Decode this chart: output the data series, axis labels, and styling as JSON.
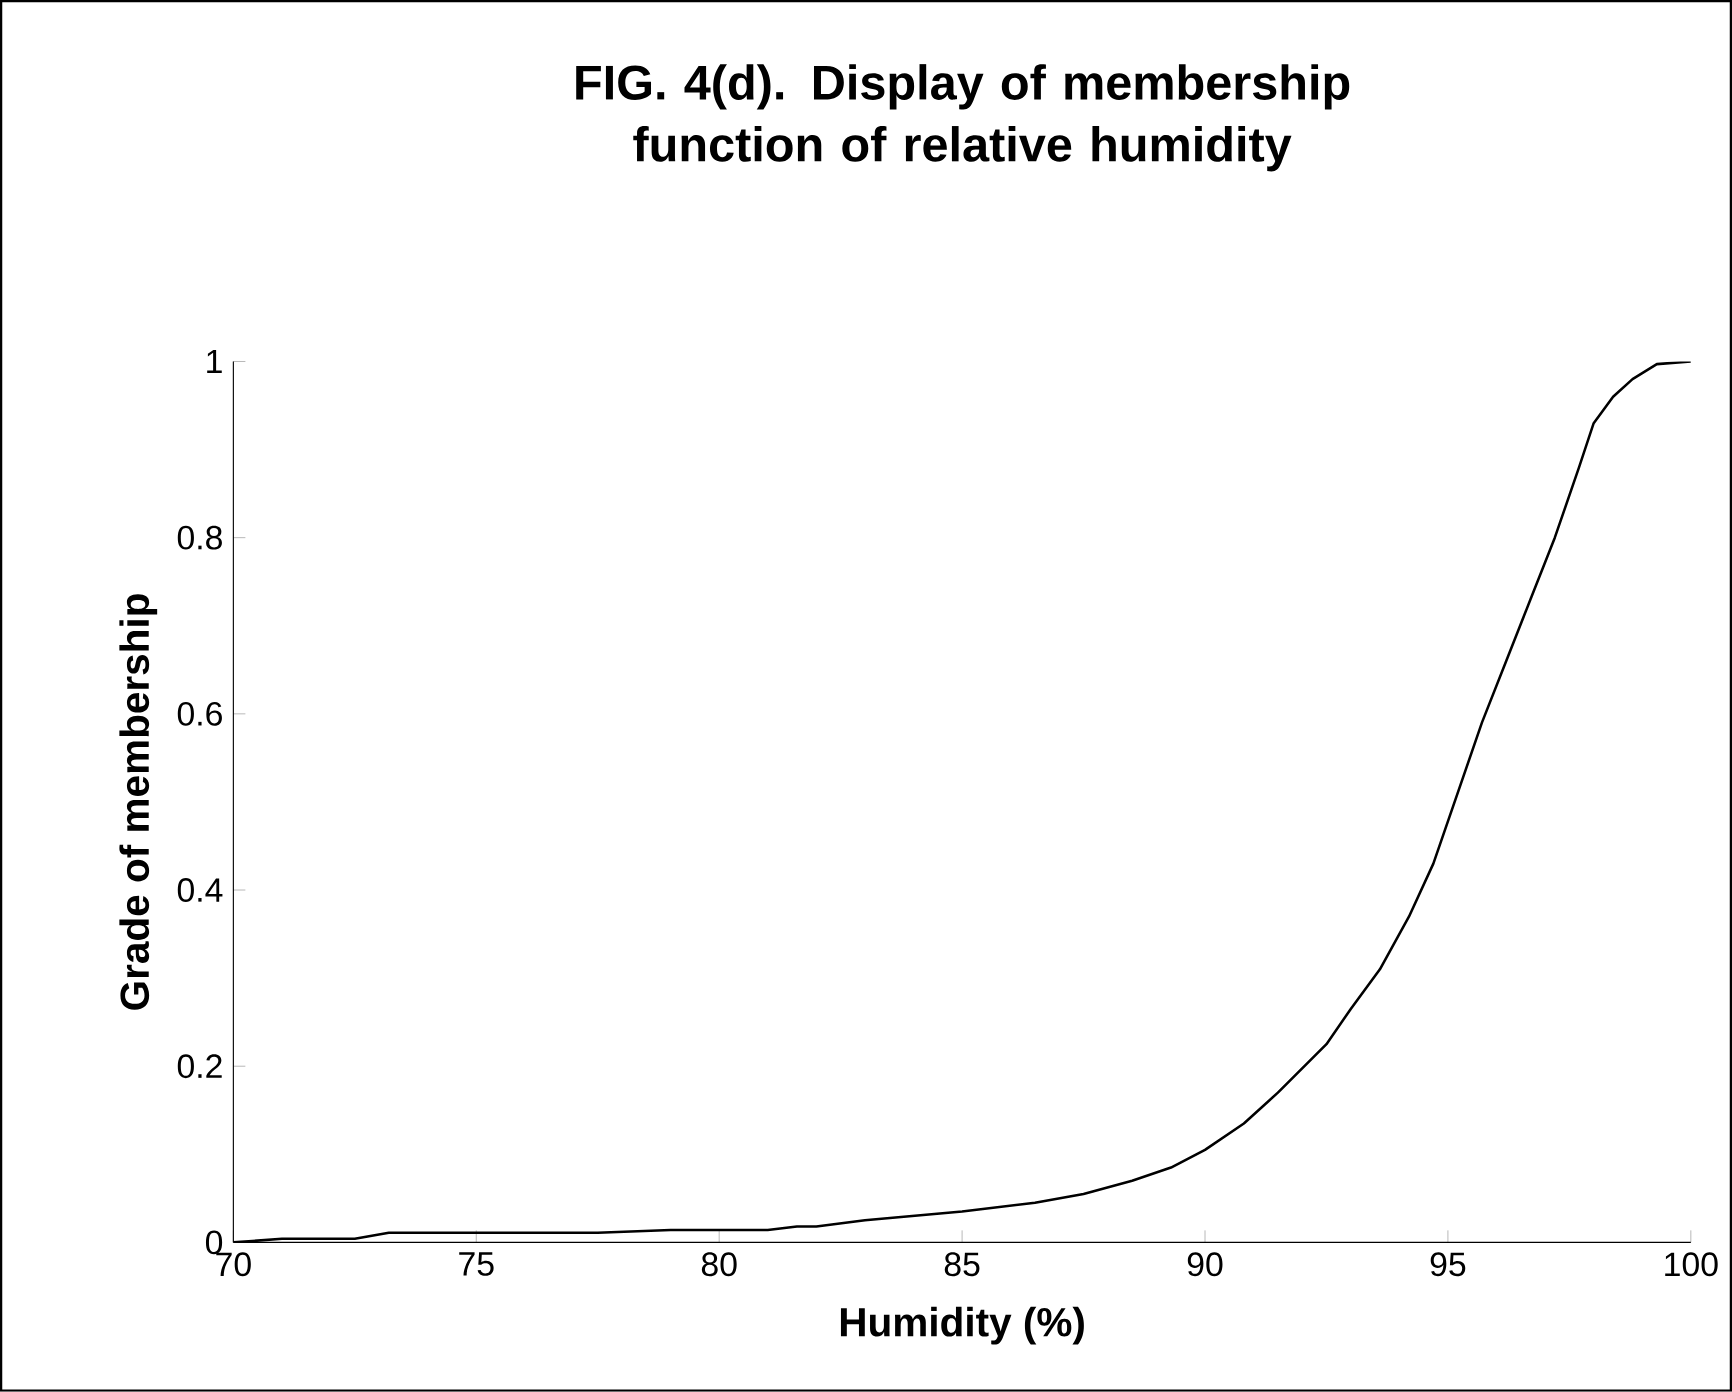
{
  "chart_data": {
    "type": "line",
    "title": "FIG. 4(d). Display of membership function of relative humidity",
    "xlabel": "Humidity (%)",
    "ylabel": "Grade of membership",
    "xlim": [
      70,
      100
    ],
    "ylim": [
      0,
      1
    ],
    "xticks": [
      70,
      75,
      80,
      85,
      90,
      95,
      100
    ],
    "yticks": [
      0,
      0.2,
      0.4,
      0.6,
      0.8,
      1
    ],
    "grid": false,
    "marker": "none",
    "line_style": "solid",
    "series": [
      {
        "color": "#000000",
        "x": [
          70,
          71,
          72.5,
          73.2,
          77.5,
          79,
          81,
          81.6,
          82,
          83,
          85,
          86.5,
          87.5,
          88.5,
          89.3,
          90,
          90.8,
          91.5,
          92.5,
          93,
          93.6,
          94.2,
          94.7,
          95.2,
          95.7,
          96.2,
          96.7,
          97.2,
          97.7,
          98,
          98.4,
          98.8,
          99.3,
          100
        ],
        "values": [
          0,
          0.004,
          0.004,
          0.011,
          0.011,
          0.014,
          0.014,
          0.018,
          0.018,
          0.025,
          0.035,
          0.045,
          0.055,
          0.07,
          0.085,
          0.105,
          0.135,
          0.17,
          0.225,
          0.265,
          0.31,
          0.37,
          0.43,
          0.51,
          0.59,
          0.66,
          0.73,
          0.8,
          0.88,
          0.93,
          0.96,
          0.98,
          0.997,
          1
        ]
      }
    ]
  }
}
